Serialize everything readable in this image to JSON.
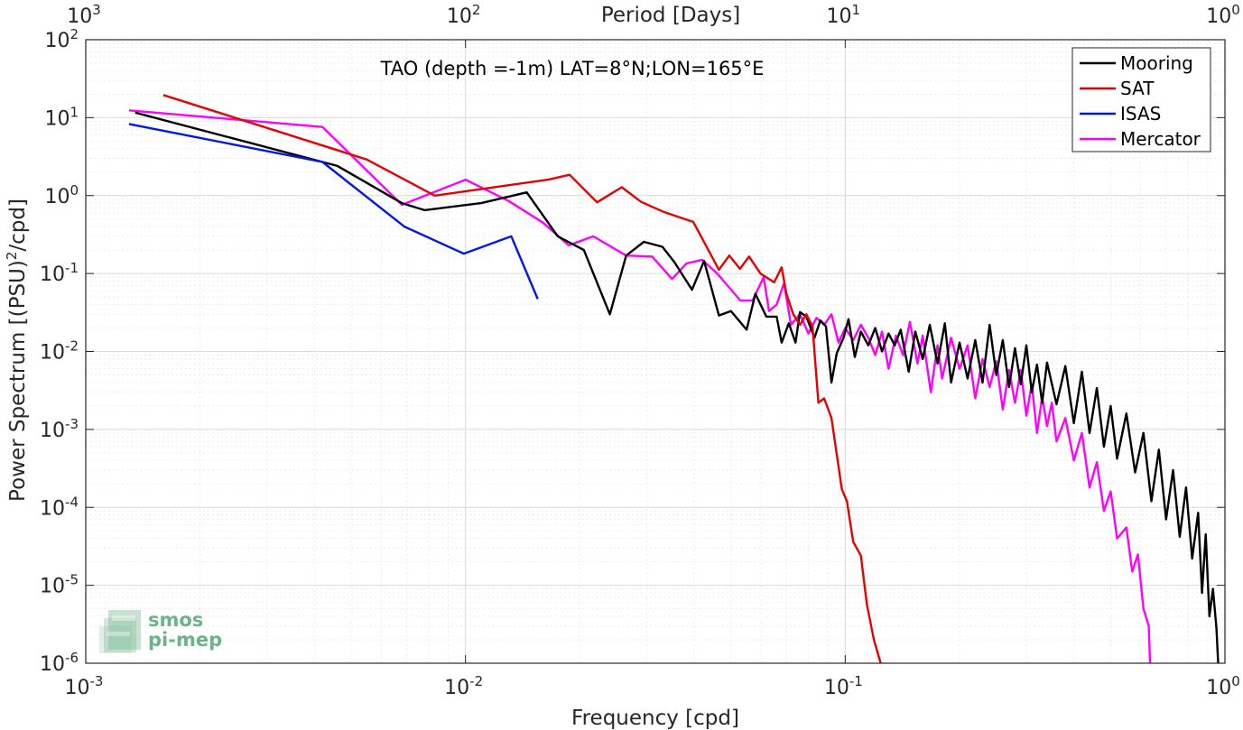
{
  "chart_data": {
    "type": "line",
    "title": "TAO (depth =-1m) LAT=8°N;LON=165°E",
    "xlabel": "Frequency [cpd]",
    "ylabel": "Power Spectrum [(PSU)",
    "ylabel_sup": "2",
    "ylabel_tail": "/cpd]",
    "top_xlabel": "Period [Days]",
    "x_scale": "log",
    "y_scale": "log",
    "xlim": [
      0.001,
      1
    ],
    "ylim": [
      1e-06,
      100
    ],
    "grid": true,
    "legend_position": "top-right",
    "x_ticks": [
      {
        "value": 0.001,
        "base": "10",
        "exp": "-3"
      },
      {
        "value": 0.01,
        "base": "10",
        "exp": "-2"
      },
      {
        "value": 0.1,
        "base": "10",
        "exp": "-1"
      },
      {
        "value": 1,
        "base": "10",
        "exp": "0"
      }
    ],
    "top_x_ticks": [
      {
        "period": 1000,
        "base": "10",
        "exp": "3"
      },
      {
        "period": 100,
        "base": "10",
        "exp": "2"
      },
      {
        "period": 10,
        "base": "10",
        "exp": "1"
      },
      {
        "period": 1,
        "base": "10",
        "exp": "0"
      }
    ],
    "y_ticks": [
      {
        "value": 100,
        "base": "10",
        "exp": "2"
      },
      {
        "value": 10,
        "base": "10",
        "exp": "1"
      },
      {
        "value": 1,
        "base": "10",
        "exp": "0"
      },
      {
        "value": 0.1,
        "base": "10",
        "exp": "-1"
      },
      {
        "value": 0.01,
        "base": "10",
        "exp": "-2"
      },
      {
        "value": 0.001,
        "base": "10",
        "exp": "-3"
      },
      {
        "value": 0.0001,
        "base": "10",
        "exp": "-4"
      },
      {
        "value": 1e-05,
        "base": "10",
        "exp": "-5"
      },
      {
        "value": 1e-06,
        "base": "10",
        "exp": "-6"
      }
    ],
    "series": [
      {
        "name": "Mooring",
        "color": "#000000",
        "points": [
          [
            0.00135,
            11.6
          ],
          [
            0.0046,
            2.4
          ],
          [
            0.0068,
            0.8
          ],
          [
            0.0078,
            0.65
          ],
          [
            0.011,
            0.8
          ],
          [
            0.0145,
            1.1
          ],
          [
            0.0175,
            0.3
          ],
          [
            0.0205,
            0.2
          ],
          [
            0.024,
            0.03
          ],
          [
            0.0265,
            0.17
          ],
          [
            0.0295,
            0.255
          ],
          [
            0.033,
            0.22
          ],
          [
            0.0355,
            0.14
          ],
          [
            0.0395,
            0.062
          ],
          [
            0.0425,
            0.145
          ],
          [
            0.0465,
            0.029
          ],
          [
            0.05,
            0.033
          ],
          [
            0.055,
            0.019
          ],
          [
            0.058,
            0.055
          ],
          [
            0.062,
            0.028
          ],
          [
            0.066,
            0.028
          ],
          [
            0.068,
            0.013
          ],
          [
            0.071,
            0.023
          ],
          [
            0.074,
            0.013
          ],
          [
            0.076,
            0.032
          ],
          [
            0.079,
            0.028
          ],
          [
            0.083,
            0.015
          ],
          [
            0.086,
            0.025
          ],
          [
            0.089,
            0.021
          ],
          [
            0.092,
            0.004
          ],
          [
            0.095,
            0.0095
          ],
          [
            0.099,
            0.015
          ],
          [
            0.102,
            0.026
          ],
          [
            0.106,
            0.0085
          ],
          [
            0.11,
            0.018
          ],
          [
            0.115,
            0.012
          ],
          [
            0.12,
            0.02
          ],
          [
            0.125,
            0.01
          ],
          [
            0.13,
            0.017
          ],
          [
            0.135,
            0.012
          ],
          [
            0.14,
            0.019
          ],
          [
            0.147,
            0.0055
          ],
          [
            0.153,
            0.018
          ],
          [
            0.16,
            0.008
          ],
          [
            0.167,
            0.022
          ],
          [
            0.175,
            0.007
          ],
          [
            0.183,
            0.023
          ],
          [
            0.19,
            0.004
          ],
          [
            0.2,
            0.013
          ],
          [
            0.21,
            0.0045
          ],
          [
            0.22,
            0.014
          ],
          [
            0.23,
            0.004
          ],
          [
            0.24,
            0.022
          ],
          [
            0.25,
            0.005
          ],
          [
            0.26,
            0.014
          ],
          [
            0.27,
            0.0035
          ],
          [
            0.28,
            0.011
          ],
          [
            0.29,
            0.0038
          ],
          [
            0.3,
            0.012
          ],
          [
            0.31,
            0.003
          ],
          [
            0.32,
            0.0068
          ],
          [
            0.33,
            0.0022
          ],
          [
            0.34,
            0.0072
          ],
          [
            0.36,
            0.0021
          ],
          [
            0.38,
            0.0065
          ],
          [
            0.4,
            0.0012
          ],
          [
            0.42,
            0.0055
          ],
          [
            0.44,
            0.0009
          ],
          [
            0.46,
            0.0034
          ],
          [
            0.48,
            0.0006
          ],
          [
            0.5,
            0.002
          ],
          [
            0.52,
            0.00042
          ],
          [
            0.55,
            0.0016
          ],
          [
            0.58,
            0.00028
          ],
          [
            0.61,
            0.0009
          ],
          [
            0.64,
            0.00012
          ],
          [
            0.67,
            0.00055
          ],
          [
            0.7,
            7e-05
          ],
          [
            0.73,
            0.0003
          ],
          [
            0.76,
            4.2e-05
          ],
          [
            0.79,
            0.00018
          ],
          [
            0.82,
            2.2e-05
          ],
          [
            0.85,
            8.5e-05
          ],
          [
            0.87,
            8e-06
          ],
          [
            0.89,
            4.5e-05
          ],
          [
            0.91,
            4e-06
          ],
          [
            0.93,
            9e-06
          ],
          [
            0.95,
            2.8e-06
          ],
          [
            0.96,
            1e-06
          ]
        ]
      },
      {
        "name": "SAT",
        "color": "#e60000",
        "points": [
          [
            0.0016,
            19.5
          ],
          [
            0.0055,
            2.9
          ],
          [
            0.0083,
            1.0
          ],
          [
            0.0165,
            1.6
          ],
          [
            0.0188,
            1.85
          ],
          [
            0.0222,
            0.82
          ],
          [
            0.0258,
            1.28
          ],
          [
            0.029,
            0.83
          ],
          [
            0.0332,
            0.62
          ],
          [
            0.0398,
            0.46
          ],
          [
            0.0465,
            0.112
          ],
          [
            0.0495,
            0.17
          ],
          [
            0.0528,
            0.115
          ],
          [
            0.0558,
            0.165
          ],
          [
            0.0598,
            0.1
          ],
          [
            0.065,
            0.077
          ],
          [
            0.068,
            0.12
          ],
          [
            0.07,
            0.055
          ],
          [
            0.073,
            0.03
          ],
          [
            0.076,
            0.022
          ],
          [
            0.079,
            0.03
          ],
          [
            0.082,
            0.021
          ],
          [
            0.085,
            0.0022
          ],
          [
            0.088,
            0.0025
          ],
          [
            0.092,
            0.0014
          ],
          [
            0.098,
            0.00017
          ],
          [
            0.101,
            0.00012
          ],
          [
            0.105,
            3.6e-05
          ],
          [
            0.11,
            2.4e-05
          ],
          [
            0.114,
            5.7e-06
          ],
          [
            0.119,
            2e-06
          ],
          [
            0.124,
            1e-06
          ]
        ]
      },
      {
        "name": "ISAS",
        "color": "#0019e6",
        "points": [
          [
            0.0013,
            8.3
          ],
          [
            0.0042,
            2.7
          ],
          [
            0.0069,
            0.4
          ],
          [
            0.0099,
            0.18
          ],
          [
            0.0132,
            0.3
          ],
          [
            0.0155,
            0.047
          ]
        ]
      },
      {
        "name": "Mercator",
        "color": "#ff00ff",
        "points": [
          [
            0.0013,
            12.4
          ],
          [
            0.0042,
            7.6
          ],
          [
            0.0068,
            0.76
          ],
          [
            0.01,
            1.6
          ],
          [
            0.013,
            0.85
          ],
          [
            0.016,
            0.45
          ],
          [
            0.0187,
            0.23
          ],
          [
            0.0217,
            0.3
          ],
          [
            0.0265,
            0.17
          ],
          [
            0.031,
            0.165
          ],
          [
            0.035,
            0.085
          ],
          [
            0.0382,
            0.135
          ],
          [
            0.042,
            0.15
          ],
          [
            0.046,
            0.1
          ],
          [
            0.053,
            0.045
          ],
          [
            0.057,
            0.045
          ],
          [
            0.061,
            0.09
          ],
          [
            0.063,
            0.033
          ],
          [
            0.066,
            0.04
          ],
          [
            0.069,
            0.075
          ],
          [
            0.072,
            0.022
          ],
          [
            0.076,
            0.03
          ],
          [
            0.08,
            0.017
          ],
          [
            0.084,
            0.027
          ],
          [
            0.088,
            0.022
          ],
          [
            0.092,
            0.03
          ],
          [
            0.096,
            0.013
          ],
          [
            0.1,
            0.02
          ],
          [
            0.105,
            0.014
          ],
          [
            0.11,
            0.022
          ],
          [
            0.115,
            0.015
          ],
          [
            0.12,
            0.009
          ],
          [
            0.125,
            0.018
          ],
          [
            0.13,
            0.006
          ],
          [
            0.136,
            0.016
          ],
          [
            0.142,
            0.009
          ],
          [
            0.148,
            0.024
          ],
          [
            0.155,
            0.007
          ],
          [
            0.16,
            0.016
          ],
          [
            0.168,
            0.003
          ],
          [
            0.175,
            0.012
          ],
          [
            0.18,
            0.0045
          ],
          [
            0.19,
            0.015
          ],
          [
            0.2,
            0.006
          ],
          [
            0.21,
            0.012
          ],
          [
            0.22,
            0.0025
          ],
          [
            0.23,
            0.008
          ],
          [
            0.24,
            0.0035
          ],
          [
            0.25,
            0.0075
          ],
          [
            0.26,
            0.0018
          ],
          [
            0.27,
            0.0058
          ],
          [
            0.28,
            0.0022
          ],
          [
            0.29,
            0.0058
          ],
          [
            0.3,
            0.0015
          ],
          [
            0.31,
            0.0038
          ],
          [
            0.32,
            0.0009
          ],
          [
            0.33,
            0.0026
          ],
          [
            0.34,
            0.0011
          ],
          [
            0.35,
            0.0022
          ],
          [
            0.36,
            0.0007
          ],
          [
            0.38,
            0.0014
          ],
          [
            0.4,
            0.0004
          ],
          [
            0.42,
            0.0009
          ],
          [
            0.44,
            0.00018
          ],
          [
            0.46,
            0.00038
          ],
          [
            0.48,
            9e-05
          ],
          [
            0.5,
            0.00016
          ],
          [
            0.52,
            4e-05
          ],
          [
            0.55,
            5.5e-05
          ],
          [
            0.57,
            1.5e-05
          ],
          [
            0.59,
            2.5e-05
          ],
          [
            0.61,
            5e-06
          ],
          [
            0.63,
            3e-06
          ],
          [
            0.635,
            1e-06
          ]
        ]
      }
    ]
  },
  "watermark": {
    "line1": "smos",
    "line2": "pi-mep",
    "color": "#6cb38a"
  }
}
